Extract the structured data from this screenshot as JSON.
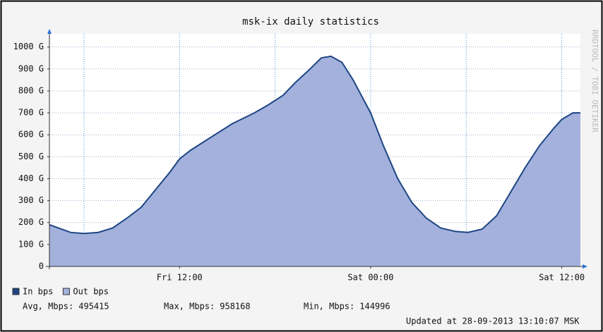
{
  "chart_data": {
    "type": "area",
    "title": "msk-ix daily statistics",
    "watermark": "RRDTOOL / TOBI OETIKER",
    "x": [
      3.83,
      5.16,
      6,
      6.9,
      7.8,
      8.7,
      9.6,
      10.5,
      11.4,
      12,
      12.7,
      14,
      15.3,
      16.7,
      17.5,
      18.5,
      19.3,
      20.2,
      20.9,
      21.5,
      22.2,
      22.9,
      24,
      24.8,
      25.7,
      26.6,
      27.5,
      28.4,
      29.3,
      30.1,
      31,
      31.9,
      32.8,
      33.7,
      34.6,
      35.5,
      36,
      36.7,
      37.17
    ],
    "series": [
      {
        "name": "Out bps",
        "color": "#a3b1dc",
        "role": "area",
        "values": [
          190,
          155,
          150,
          155,
          175,
          220,
          270,
          350,
          430,
          490,
          530,
          590,
          650,
          700,
          733,
          780,
          840,
          900,
          950,
          958,
          930,
          850,
          700,
          550,
          400,
          290,
          220,
          175,
          160,
          155,
          170,
          230,
          340,
          450,
          550,
          630,
          670,
          700,
          700
        ]
      },
      {
        "name": "In bps",
        "color": "#1d4583",
        "role": "line",
        "values": [
          190,
          155,
          150,
          155,
          175,
          220,
          270,
          350,
          430,
          490,
          530,
          590,
          650,
          700,
          733,
          780,
          840,
          900,
          950,
          958,
          930,
          850,
          700,
          550,
          400,
          290,
          220,
          175,
          160,
          155,
          170,
          230,
          340,
          450,
          550,
          630,
          670,
          700,
          700
        ]
      }
    ],
    "xlim": [
      3.83,
      37.17
    ],
    "xticks": [
      {
        "value": 12,
        "label": "Fri 12:00"
      },
      {
        "value": 24,
        "label": "Sat 00:00"
      },
      {
        "value": 36,
        "label": "Sat 12:00"
      }
    ],
    "xgrid_minor": [
      6,
      18,
      30
    ],
    "ylim": [
      0,
      1060
    ],
    "yticks": [
      0,
      {
        "value": 100,
        "label": "100 G"
      },
      {
        "value": 200,
        "label": "200 G"
      },
      {
        "value": 300,
        "label": "300 G"
      },
      {
        "value": 400,
        "label": "400 G"
      },
      {
        "value": 500,
        "label": "500 G"
      },
      {
        "value": 600,
        "label": "600 G"
      },
      {
        "value": 700,
        "label": "700 G"
      },
      {
        "value": 800,
        "label": "800 G"
      },
      {
        "value": 900,
        "label": "900 G"
      },
      {
        "value": 1000,
        "label": "1000 G"
      }
    ],
    "grid": true,
    "stats": [
      {
        "label": "Avg, Mbps:",
        "value": 495415
      },
      {
        "label": "Max, Mbps:",
        "value": 958168
      },
      {
        "label": "Min, Mbps:",
        "value": 144996
      }
    ],
    "updated": "Updated at 28-09-2013 13:10:07 MSK"
  }
}
